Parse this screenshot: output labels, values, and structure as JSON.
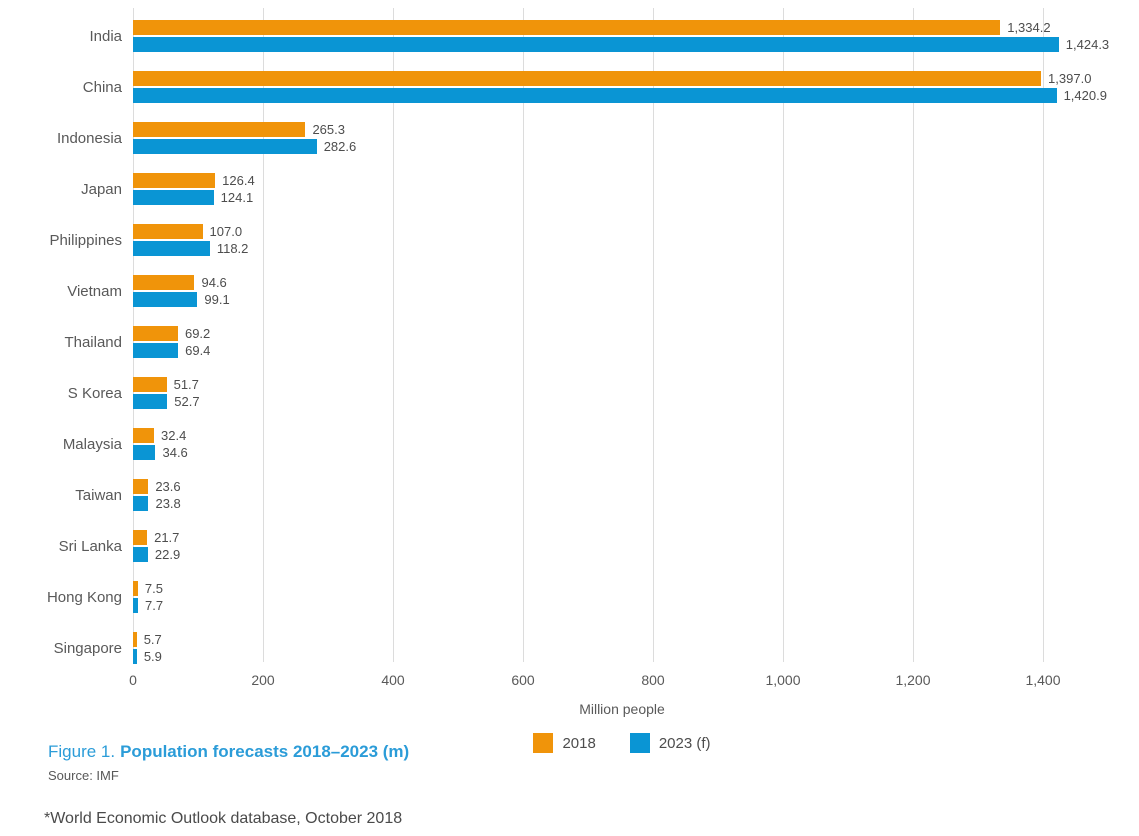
{
  "chart_data": {
    "type": "bar",
    "orientation": "horizontal",
    "title": "Population forecasts 2018–2023 (m)",
    "xlabel": "Million people",
    "categories": [
      "India",
      "China",
      "Indonesia",
      "Japan",
      "Philippines",
      "Vietnam",
      "Thailand",
      "S Korea",
      "Malaysia",
      "Taiwan",
      "Sri Lanka",
      "Hong Kong",
      "Singapore"
    ],
    "series": [
      {
        "name": "2018",
        "color": "#F0940A",
        "values": [
          1334.2,
          1397.0,
          265.3,
          126.4,
          107.0,
          94.6,
          69.2,
          51.7,
          32.4,
          23.6,
          21.7,
          7.5,
          5.7
        ],
        "labels": [
          "1,334.2",
          "1,397.0",
          "265.3",
          "126.4",
          "107.0",
          "94.6",
          "69.2",
          "51.7",
          "32.4",
          "23.6",
          "21.7",
          "7.5",
          "5.7"
        ]
      },
      {
        "name": "2023 (f)",
        "color": "#0A95D4",
        "values": [
          1424.3,
          1420.9,
          282.6,
          124.1,
          118.2,
          99.1,
          69.4,
          52.7,
          34.6,
          23.8,
          22.9,
          7.7,
          5.9
        ],
        "labels": [
          "1,424.3",
          "1,420.9",
          "282.6",
          "124.1",
          "118.2",
          "99.1",
          "69.4",
          "52.7",
          "34.6",
          "23.8",
          "22.9",
          "7.7",
          "5.9"
        ]
      }
    ],
    "xlim": [
      0,
      1500
    ],
    "xticks": [
      0,
      200,
      400,
      600,
      800,
      1000,
      1200,
      1400
    ],
    "xtick_labels": [
      "0",
      "200",
      "400",
      "600",
      "800",
      "1,000",
      "1,200",
      "1,400"
    ],
    "grid": true,
    "legend_position": "bottom-center"
  },
  "legend": {
    "items": [
      {
        "label": "2018",
        "color": "#F0940A"
      },
      {
        "label": "2023 (f)",
        "color": "#0A95D4"
      }
    ]
  },
  "caption": {
    "figure_label": "Figure 1.",
    "title": "Population forecasts 2018–2023 (m)"
  },
  "source": "Source: IMF",
  "footnote": "*World Economic Outlook database, October 2018",
  "colors": {
    "bar_2018": "#F0940A",
    "bar_2023": "#0A95D4",
    "caption_blue": "#2B9CD8",
    "gridline": "#DCDCDC",
    "text_gray": "#595959",
    "text_dark": "#4A4A4A"
  }
}
